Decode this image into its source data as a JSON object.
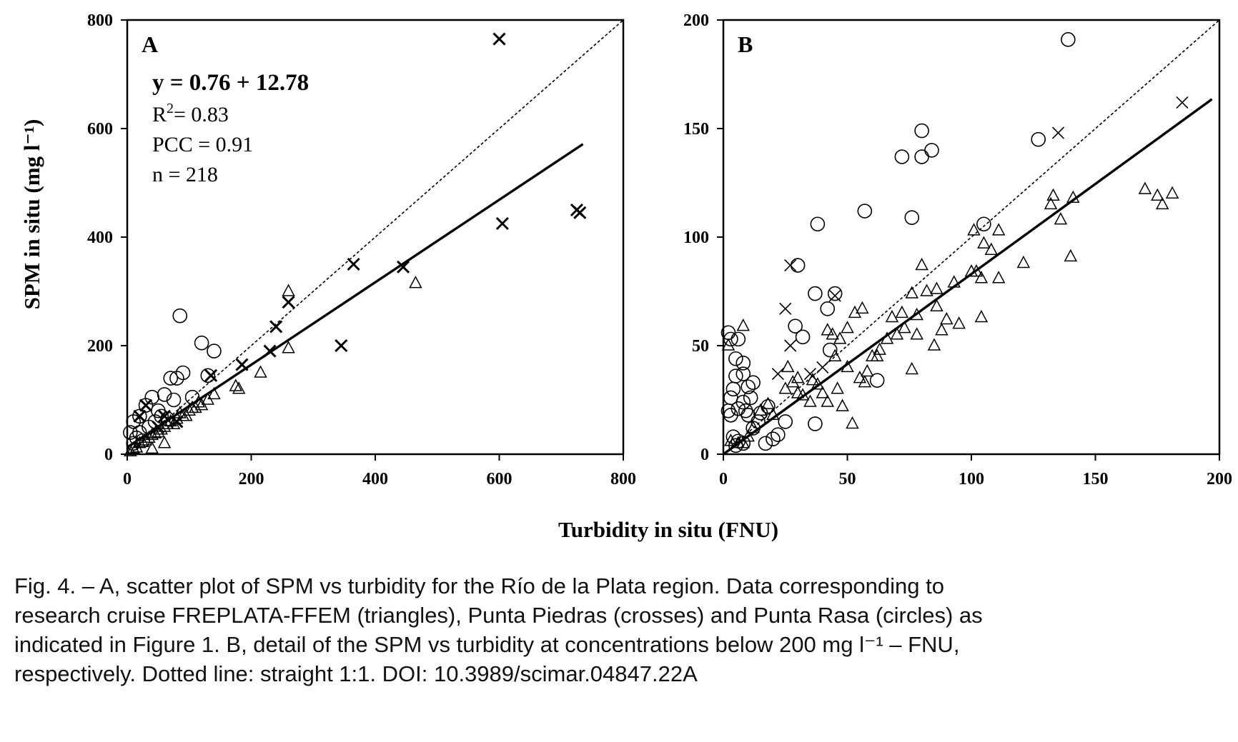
{
  "figure": {
    "x_axis_title": "Turbidity  in situ  (FNU)",
    "y_axis_title": "SPM  in situ  (mg l⁻¹)",
    "caption_lines": [
      "Fig. 4. – A, scatter plot of SPM vs turbidity for the Río de la Plata region. Data corresponding to",
      "research cruise FREPLATA-FFEM (triangles), Punta Piedras (crosses) and Punta Rasa (circles) as",
      "indicated in Figure 1. B, detail of the SPM vs turbidity at concentrations below 200 mg l⁻¹ – FNU,",
      "respectively. Dotted line: straight 1:1. DOI: 10.3989/scimar.04847.22A"
    ]
  },
  "chart_data": [
    {
      "type": "scatter",
      "panel_label": "A",
      "xlim": [
        0,
        800
      ],
      "ylim": [
        0,
        800
      ],
      "x_ticks": [
        0,
        200,
        400,
        600,
        800
      ],
      "y_ticks": [
        0,
        200,
        400,
        600,
        800
      ],
      "annotations": [
        "y = 0.76 + 12.78",
        "R",
        "2",
        "= 0.83",
        "PCC = 0.91",
        "n = 218"
      ],
      "regression": {
        "slope": 0.76,
        "intercept": 12.78,
        "x_range": [
          0,
          735
        ]
      },
      "identity_line": true,
      "series": [
        {
          "marker": "cross",
          "points": [
            [
              600,
              765
            ],
            [
              605,
              425
            ],
            [
              725,
              450
            ],
            [
              730,
              445
            ],
            [
              365,
              350
            ],
            [
              445,
              345
            ],
            [
              345,
              200
            ],
            [
              240,
              235
            ],
            [
              230,
              190
            ],
            [
              260,
              280
            ],
            [
              185,
              165
            ],
            [
              135,
              145
            ],
            [
              30,
              90
            ],
            [
              20,
              70
            ],
            [
              50,
              50
            ],
            [
              60,
              70
            ],
            [
              80,
              60
            ]
          ]
        },
        {
          "marker": "triangle",
          "points": [
            [
              260,
              300
            ],
            [
              465,
              315
            ],
            [
              260,
              195
            ],
            [
              215,
              150
            ],
            [
              180,
              120
            ],
            [
              175,
              125
            ],
            [
              140,
              110
            ],
            [
              130,
              100
            ],
            [
              120,
              90
            ],
            [
              110,
              85
            ],
            [
              100,
              80
            ],
            [
              90,
              70
            ],
            [
              80,
              65
            ],
            [
              70,
              60
            ],
            [
              60,
              50
            ],
            [
              50,
              40
            ],
            [
              40,
              35
            ],
            [
              30,
              25
            ],
            [
              20,
              20
            ],
            [
              10,
              10
            ],
            [
              5,
              5
            ],
            [
              15,
              12
            ],
            [
              25,
              22
            ],
            [
              35,
              30
            ],
            [
              45,
              38
            ],
            [
              55,
              45
            ],
            [
              65,
              55
            ],
            [
              75,
              55
            ],
            [
              85,
              75
            ],
            [
              95,
              70
            ],
            [
              105,
              85
            ],
            [
              115,
              95
            ],
            [
              60,
              20
            ],
            [
              40,
              10
            ]
          ]
        },
        {
          "marker": "circle",
          "points": [
            [
              85,
              255
            ],
            [
              120,
              205
            ],
            [
              140,
              190
            ],
            [
              130,
              145
            ],
            [
              90,
              150
            ],
            [
              80,
              140
            ],
            [
              70,
              140
            ],
            [
              105,
              105
            ],
            [
              60,
              110
            ],
            [
              40,
              105
            ],
            [
              50,
              80
            ],
            [
              30,
              90
            ],
            [
              20,
              70
            ],
            [
              10,
              60
            ],
            [
              5,
              40
            ],
            [
              15,
              30
            ],
            [
              25,
              25
            ],
            [
              35,
              50
            ],
            [
              45,
              60
            ],
            [
              55,
              70
            ],
            [
              65,
              65
            ],
            [
              75,
              100
            ],
            [
              10,
              20
            ],
            [
              20,
              40
            ]
          ]
        }
      ]
    },
    {
      "type": "scatter",
      "panel_label": "B",
      "xlim": [
        0,
        200
      ],
      "ylim": [
        0,
        200
      ],
      "x_ticks": [
        0,
        50,
        100,
        150,
        200
      ],
      "y_ticks": [
        0,
        50,
        100,
        150,
        200
      ],
      "regression": {
        "slope": 0.83,
        "intercept": 0,
        "x_range": [
          0,
          197
        ]
      },
      "identity_line": true,
      "series": [
        {
          "marker": "cross",
          "points": [
            [
              185,
              162
            ],
            [
              135,
              148
            ],
            [
              27,
              87
            ],
            [
              25,
              67
            ],
            [
              27,
              50
            ],
            [
              45,
              73
            ],
            [
              22,
              37
            ],
            [
              35,
              37
            ],
            [
              40,
              40
            ]
          ]
        },
        {
          "marker": "triangle",
          "points": [
            [
              170,
              122
            ],
            [
              175,
              119
            ],
            [
              177,
              115
            ],
            [
              181,
              120
            ],
            [
              133,
              119
            ],
            [
              132,
              115
            ],
            [
              141,
              118
            ],
            [
              136,
              108
            ],
            [
              140,
              91
            ],
            [
              101,
              103
            ],
            [
              105,
              97
            ],
            [
              108,
              94
            ],
            [
              111,
              103
            ],
            [
              111,
              81
            ],
            [
              121,
              88
            ],
            [
              104,
              81
            ],
            [
              104,
              63
            ],
            [
              100,
              84
            ],
            [
              93,
              79
            ],
            [
              90,
              62
            ],
            [
              86,
              76
            ],
            [
              82,
              75
            ],
            [
              80,
              87
            ],
            [
              86,
              68
            ],
            [
              76,
              74
            ],
            [
              78,
              64
            ],
            [
              72,
              65
            ],
            [
              68,
              63
            ],
            [
              78,
              55
            ],
            [
              66,
              53
            ],
            [
              60,
              45
            ],
            [
              56,
              67
            ],
            [
              53,
              65
            ],
            [
              50,
              58
            ],
            [
              47,
              53
            ],
            [
              44,
              55
            ],
            [
              42,
              57
            ],
            [
              38,
              32
            ],
            [
              35,
              24
            ],
            [
              30,
              28
            ],
            [
              28,
              33
            ],
            [
              26,
              40
            ],
            [
              25,
              30
            ],
            [
              20,
              18
            ],
            [
              18,
              23
            ],
            [
              15,
              20
            ],
            [
              12,
              12
            ],
            [
              10,
              8
            ],
            [
              8,
              5
            ],
            [
              6,
              5
            ],
            [
              3,
              6
            ],
            [
              2,
              50
            ],
            [
              8,
              59
            ],
            [
              52,
              14
            ],
            [
              76,
              39
            ],
            [
              85,
              50
            ],
            [
              62,
              45
            ],
            [
              58,
              38
            ],
            [
              55,
              35
            ],
            [
              46,
              30
            ],
            [
              48,
              22
            ],
            [
              42,
              24
            ],
            [
              30,
              35
            ],
            [
              32,
              27
            ],
            [
              36,
              34
            ],
            [
              40,
              28
            ],
            [
              45,
              45
            ],
            [
              50,
              40
            ],
            [
              57,
              33
            ],
            [
              63,
              48
            ],
            [
              70,
              55
            ],
            [
              73,
              58
            ],
            [
              88,
              57
            ],
            [
              95,
              60
            ],
            [
              102,
              84
            ]
          ]
        },
        {
          "marker": "circle",
          "points": [
            [
              139,
              191
            ],
            [
              80,
              149
            ],
            [
              80,
              137
            ],
            [
              84,
              140
            ],
            [
              72,
              137
            ],
            [
              127,
              145
            ],
            [
              57,
              112
            ],
            [
              76,
              109
            ],
            [
              105,
              106
            ],
            [
              38,
              106
            ],
            [
              37,
              74
            ],
            [
              45,
              74
            ],
            [
              30,
              87
            ],
            [
              29,
              59
            ],
            [
              32,
              54
            ],
            [
              42,
              67
            ],
            [
              43,
              48
            ],
            [
              37,
              14
            ],
            [
              62,
              34
            ],
            [
              2,
              56
            ],
            [
              3,
              53
            ],
            [
              6,
              53
            ],
            [
              5,
              44
            ],
            [
              8,
              42
            ],
            [
              5,
              36
            ],
            [
              8,
              37
            ],
            [
              10,
              31
            ],
            [
              12,
              33
            ],
            [
              3,
              26
            ],
            [
              4,
              30
            ],
            [
              6,
              21
            ],
            [
              2,
              20
            ],
            [
              3,
              18
            ],
            [
              8,
              24
            ],
            [
              10,
              18
            ],
            [
              12,
              12
            ],
            [
              14,
              15
            ],
            [
              17,
              5
            ],
            [
              20,
              7
            ],
            [
              22,
              9
            ],
            [
              25,
              15
            ],
            [
              6,
              6
            ],
            [
              8,
              5
            ],
            [
              4,
              8
            ],
            [
              9,
              20
            ],
            [
              15,
              19
            ],
            [
              18,
              22
            ],
            [
              11,
              26
            ],
            [
              5,
              4
            ]
          ]
        }
      ]
    }
  ]
}
